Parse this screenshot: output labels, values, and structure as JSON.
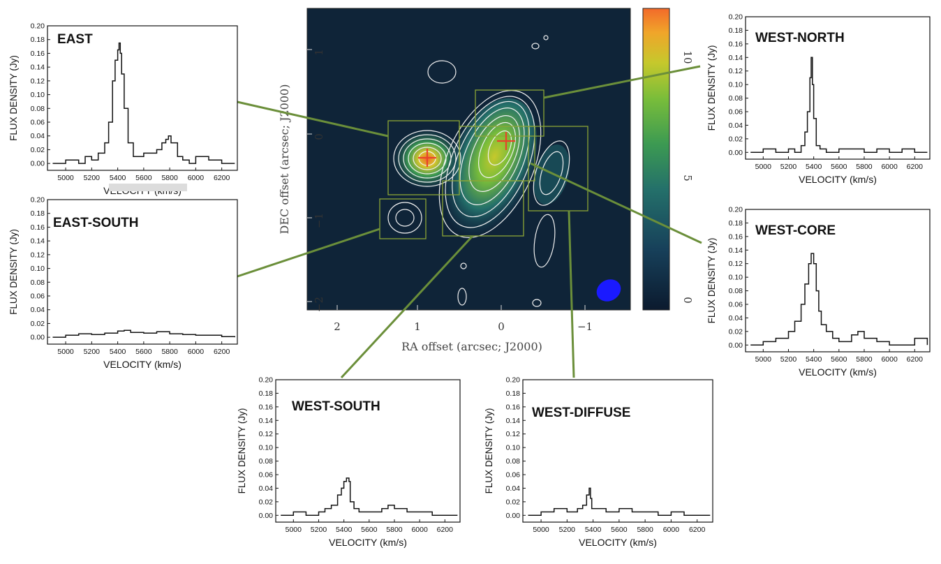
{
  "spectra_common": {
    "ylabel": "FLUX DENSITY (Jy)",
    "xlabel": "VELOCITY (km/s)",
    "yticks": [
      "0.20",
      "0.18",
      "0.16",
      "0.14",
      "0.12",
      "0.10",
      "0.08",
      "0.06",
      "0.04",
      "0.02",
      "0.00"
    ],
    "xticks": [
      "5000",
      "5200",
      "5400",
      "5600",
      "5800",
      "6000",
      "6200"
    ]
  },
  "map": {
    "xlabel": "RA offset (arcsec; J2000)",
    "ylabel": "DEC offset (arcsec; J2000)",
    "xticks": [
      "2",
      "1",
      "0",
      "−1"
    ],
    "yticks": [
      "1",
      "0",
      "−1",
      "−2"
    ],
    "colorbar_ticks": [
      "10",
      "5",
      "0"
    ],
    "colormap": [
      "#0b1a2e",
      "#17405a",
      "#24706a",
      "#3c9a52",
      "#79bd3a",
      "#c6c82c",
      "#f0a52a",
      "#f36a2a"
    ],
    "beam_color": "#1a1aff",
    "marker_color": "#e8432b",
    "contour_color": "#f2f2f2"
  },
  "connector_color": "#6b8f3a",
  "chart_data": [
    {
      "type": "line",
      "panel": "EAST",
      "xlim": [
        4860,
        6320
      ],
      "ylim": [
        -0.01,
        0.2
      ],
      "x": [
        4900,
        5000,
        5100,
        5150,
        5200,
        5250,
        5300,
        5330,
        5360,
        5380,
        5400,
        5410,
        5420,
        5430,
        5450,
        5480,
        5520,
        5560,
        5600,
        5650,
        5700,
        5740,
        5770,
        5790,
        5810,
        5830,
        5860,
        5900,
        5950,
        6000,
        6100,
        6200,
        6300
      ],
      "y": [
        0.0,
        0.005,
        0.0,
        0.01,
        0.005,
        0.015,
        0.03,
        0.06,
        0.12,
        0.15,
        0.165,
        0.175,
        0.16,
        0.13,
        0.08,
        0.03,
        0.01,
        0.01,
        0.015,
        0.015,
        0.02,
        0.03,
        0.035,
        0.04,
        0.03,
        0.03,
        0.01,
        0.005,
        0.0,
        0.01,
        0.005,
        0.0,
        0.0
      ]
    },
    {
      "type": "line",
      "panel": "EAST-SOUTH",
      "xlim": [
        4860,
        6320
      ],
      "ylim": [
        -0.01,
        0.2
      ],
      "x": [
        4900,
        5000,
        5100,
        5200,
        5300,
        5400,
        5450,
        5500,
        5600,
        5700,
        5800,
        5900,
        6000,
        6100,
        6200,
        6300
      ],
      "y": [
        0.0,
        0.003,
        0.005,
        0.004,
        0.006,
        0.009,
        0.01,
        0.007,
        0.006,
        0.008,
        0.005,
        0.004,
        0.003,
        0.003,
        0.001,
        0.0
      ]
    },
    {
      "type": "line",
      "panel": "WEST-NORTH",
      "xlim": [
        4860,
        6320
      ],
      "ylim": [
        -0.01,
        0.2
      ],
      "x": [
        4900,
        5000,
        5100,
        5200,
        5250,
        5300,
        5330,
        5350,
        5370,
        5380,
        5390,
        5400,
        5420,
        5450,
        5500,
        5600,
        5700,
        5800,
        5900,
        6000,
        6100,
        6200,
        6300
      ],
      "y": [
        0.0,
        0.005,
        0.0,
        0.005,
        0.0,
        0.01,
        0.03,
        0.06,
        0.11,
        0.14,
        0.1,
        0.05,
        0.01,
        0.005,
        0.0,
        0.005,
        0.005,
        0.0,
        0.005,
        0.0,
        0.005,
        0.0,
        0.0
      ]
    },
    {
      "type": "line",
      "panel": "WEST-CORE",
      "xlim": [
        4860,
        6320
      ],
      "ylim": [
        -0.01,
        0.2
      ],
      "x": [
        4900,
        5000,
        5100,
        5200,
        5250,
        5300,
        5330,
        5360,
        5380,
        5400,
        5420,
        5440,
        5460,
        5500,
        5550,
        5600,
        5700,
        5750,
        5800,
        5900,
        6000,
        6100,
        6200,
        6300
      ],
      "y": [
        0.0,
        0.005,
        0.01,
        0.02,
        0.035,
        0.06,
        0.09,
        0.12,
        0.135,
        0.12,
        0.08,
        0.05,
        0.03,
        0.02,
        0.01,
        0.005,
        0.015,
        0.02,
        0.01,
        0.005,
        0.0,
        0.0,
        0.01,
        0.0
      ]
    },
    {
      "type": "line",
      "panel": "WEST-SOUTH",
      "xlim": [
        4860,
        6320
      ],
      "ylim": [
        -0.01,
        0.2
      ],
      "x": [
        4900,
        5000,
        5100,
        5200,
        5250,
        5300,
        5350,
        5380,
        5400,
        5420,
        5440,
        5450,
        5480,
        5520,
        5600,
        5700,
        5750,
        5800,
        5900,
        6000,
        6100,
        6200,
        6300
      ],
      "y": [
        0.0,
        0.005,
        0.0,
        0.005,
        0.01,
        0.015,
        0.03,
        0.04,
        0.05,
        0.055,
        0.05,
        0.02,
        0.01,
        0.005,
        0.005,
        0.01,
        0.015,
        0.01,
        0.005,
        0.005,
        0.0,
        0.0,
        0.0
      ]
    },
    {
      "type": "line",
      "panel": "WEST-DIFFUSE",
      "xlim": [
        4860,
        6320
      ],
      "ylim": [
        -0.01,
        0.2
      ],
      "x": [
        4900,
        5000,
        5100,
        5200,
        5280,
        5320,
        5350,
        5370,
        5380,
        5390,
        5420,
        5500,
        5600,
        5700,
        5800,
        5900,
        6000,
        6100,
        6200,
        6300
      ],
      "y": [
        0.0,
        0.005,
        0.01,
        0.005,
        0.01,
        0.015,
        0.03,
        0.04,
        0.025,
        0.01,
        0.01,
        0.005,
        0.01,
        0.005,
        0.005,
        0.0,
        0.005,
        0.0,
        0.0,
        0.0
      ]
    }
  ]
}
